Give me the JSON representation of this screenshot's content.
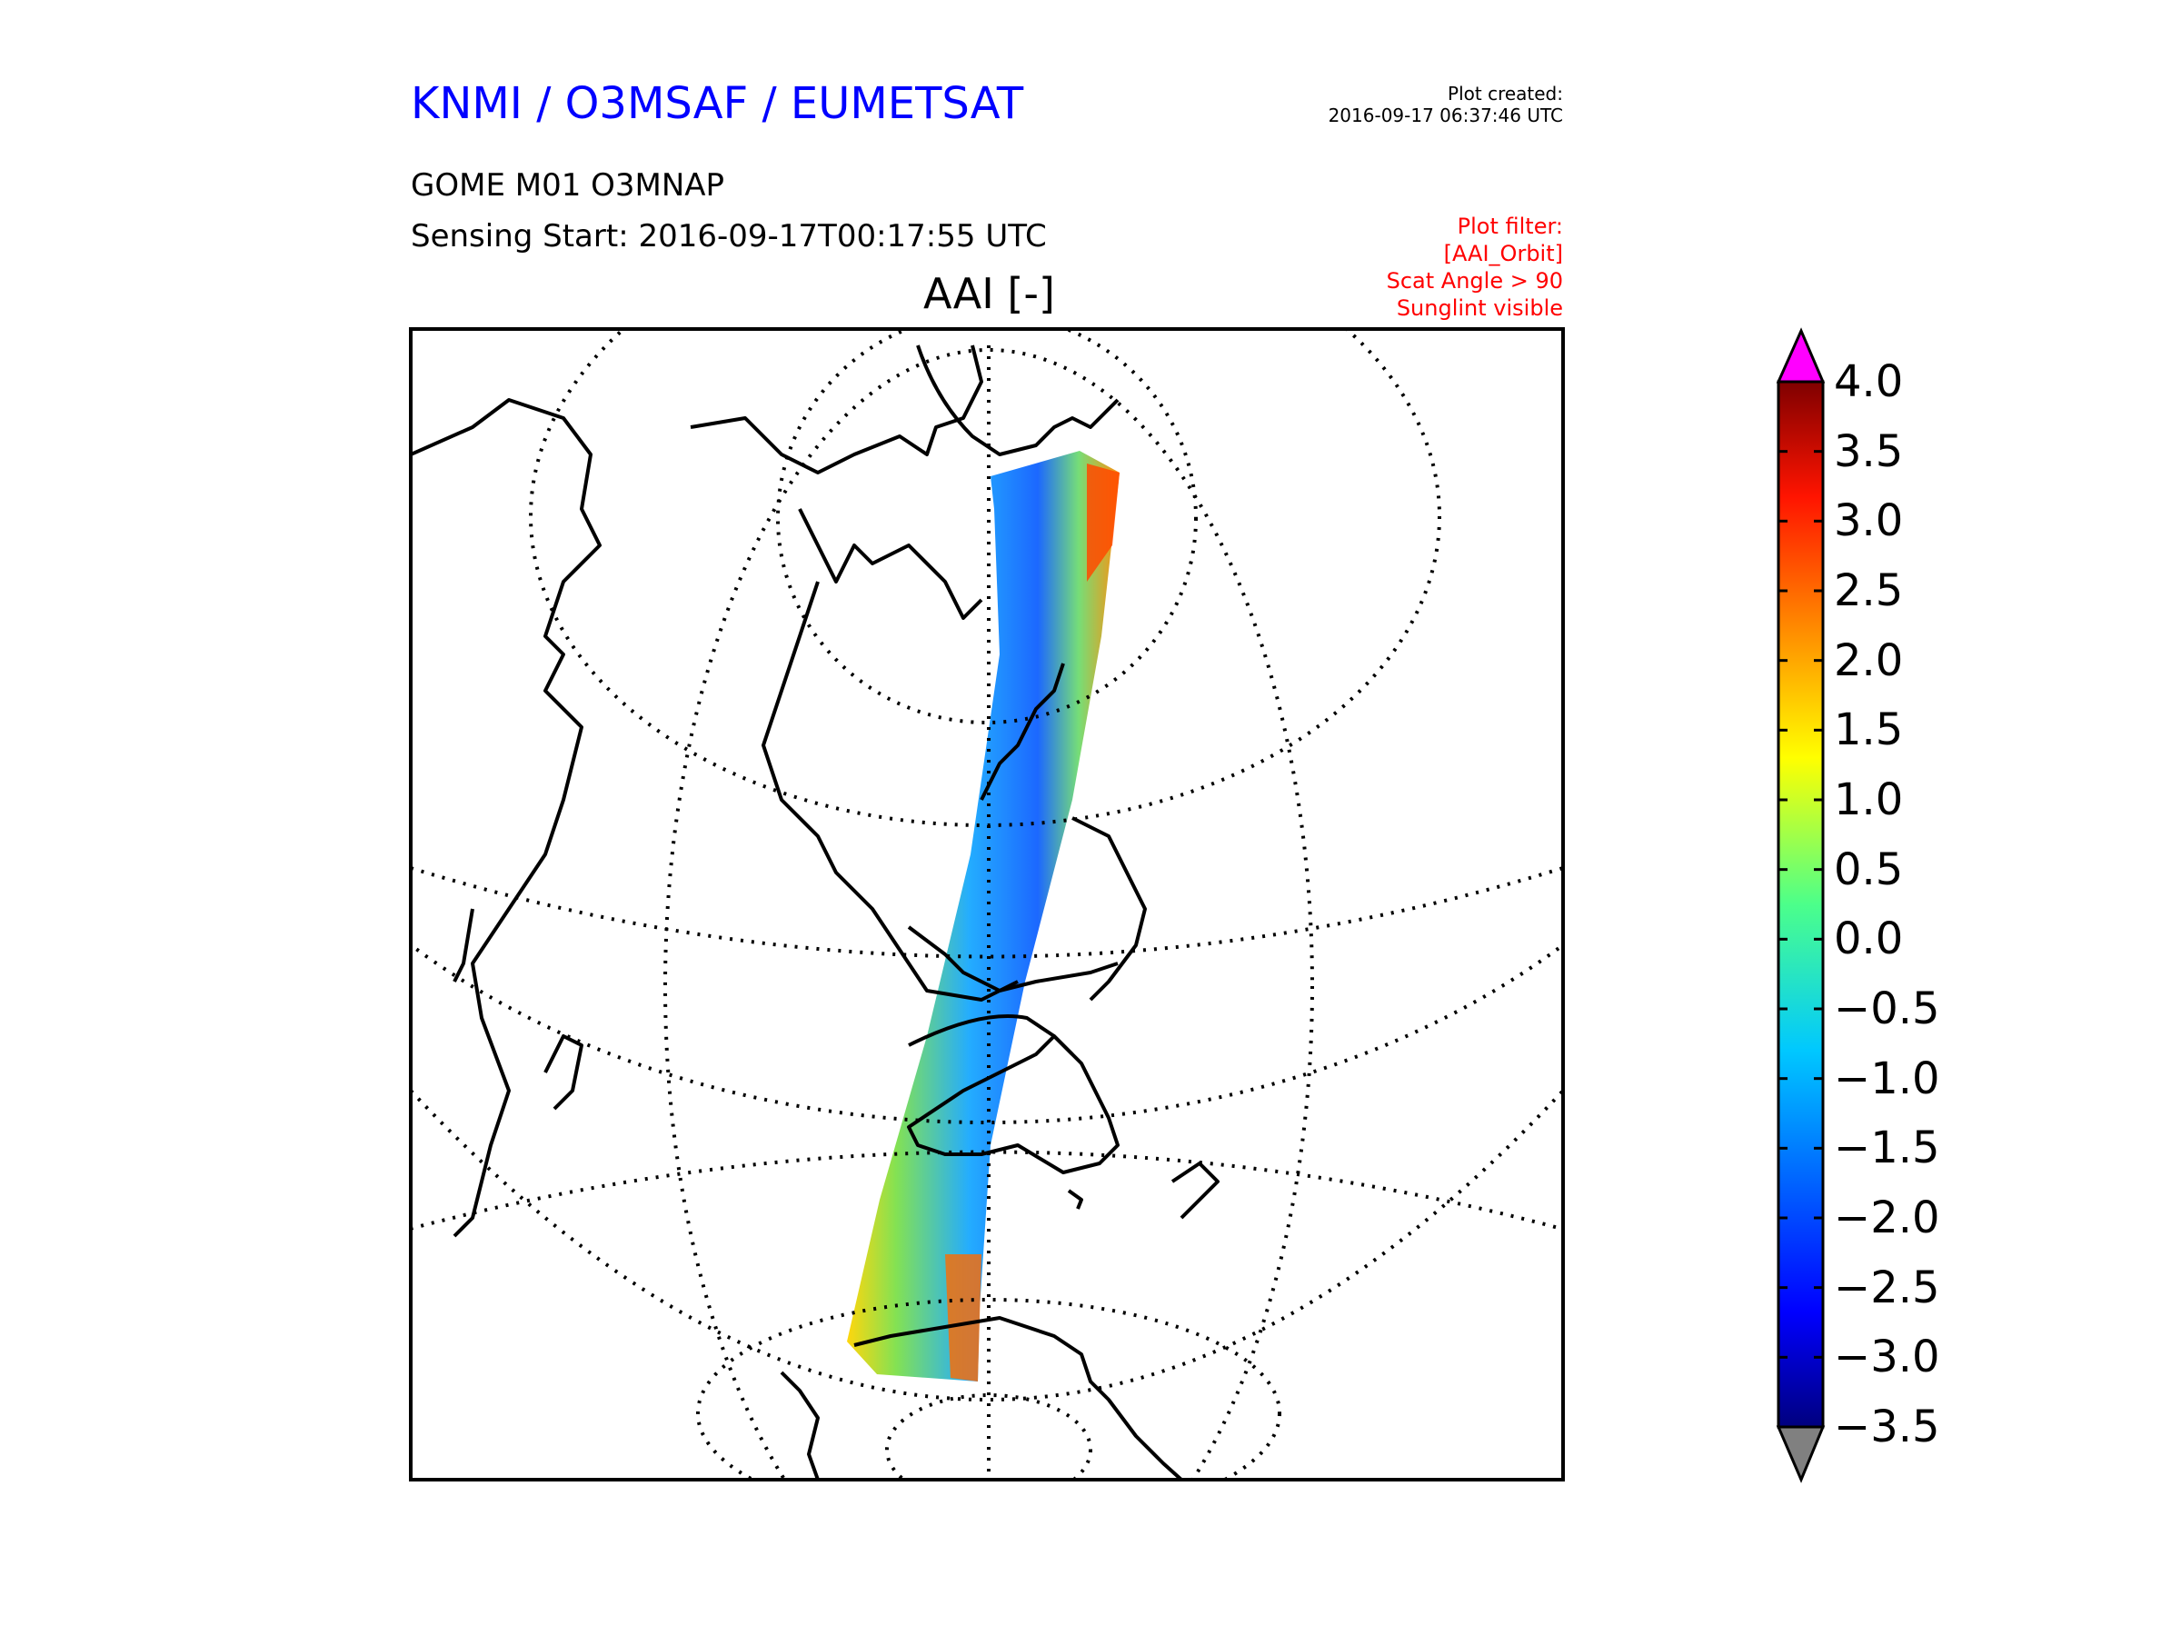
{
  "header": {
    "org_title": "KNMI / O3MSAF / EUMETSAT",
    "created_label": "Plot created:",
    "created_time": "2016-09-17 06:37:46 UTC",
    "product": "GOME M01 O3MNAP",
    "sensing_start": "Sensing Start: 2016-09-17T00:17:55 UTC"
  },
  "filter": {
    "title": "Plot filter:",
    "lines": [
      "[AAI_Orbit]",
      "Scat Angle > 90",
      "Sunglint visible"
    ],
    "color": "#ff0000"
  },
  "plot": {
    "title": "AAI [-]"
  },
  "colorbar": {
    "ticks": [
      "4.0",
      "3.5",
      "3.0",
      "2.5",
      "2.0",
      "1.5",
      "1.0",
      "0.5",
      "0.0",
      "−0.5",
      "−1.0",
      "−1.5",
      "−2.0",
      "−2.5",
      "−3.0",
      "−3.5"
    ],
    "min": -3.5,
    "max": 4.0,
    "over_color": "#ff00ff",
    "under_color": "#808080",
    "colormap": "jet"
  },
  "map": {
    "projection": "orthographic",
    "graticule": "dotted",
    "coastline_color": "#000000"
  }
}
